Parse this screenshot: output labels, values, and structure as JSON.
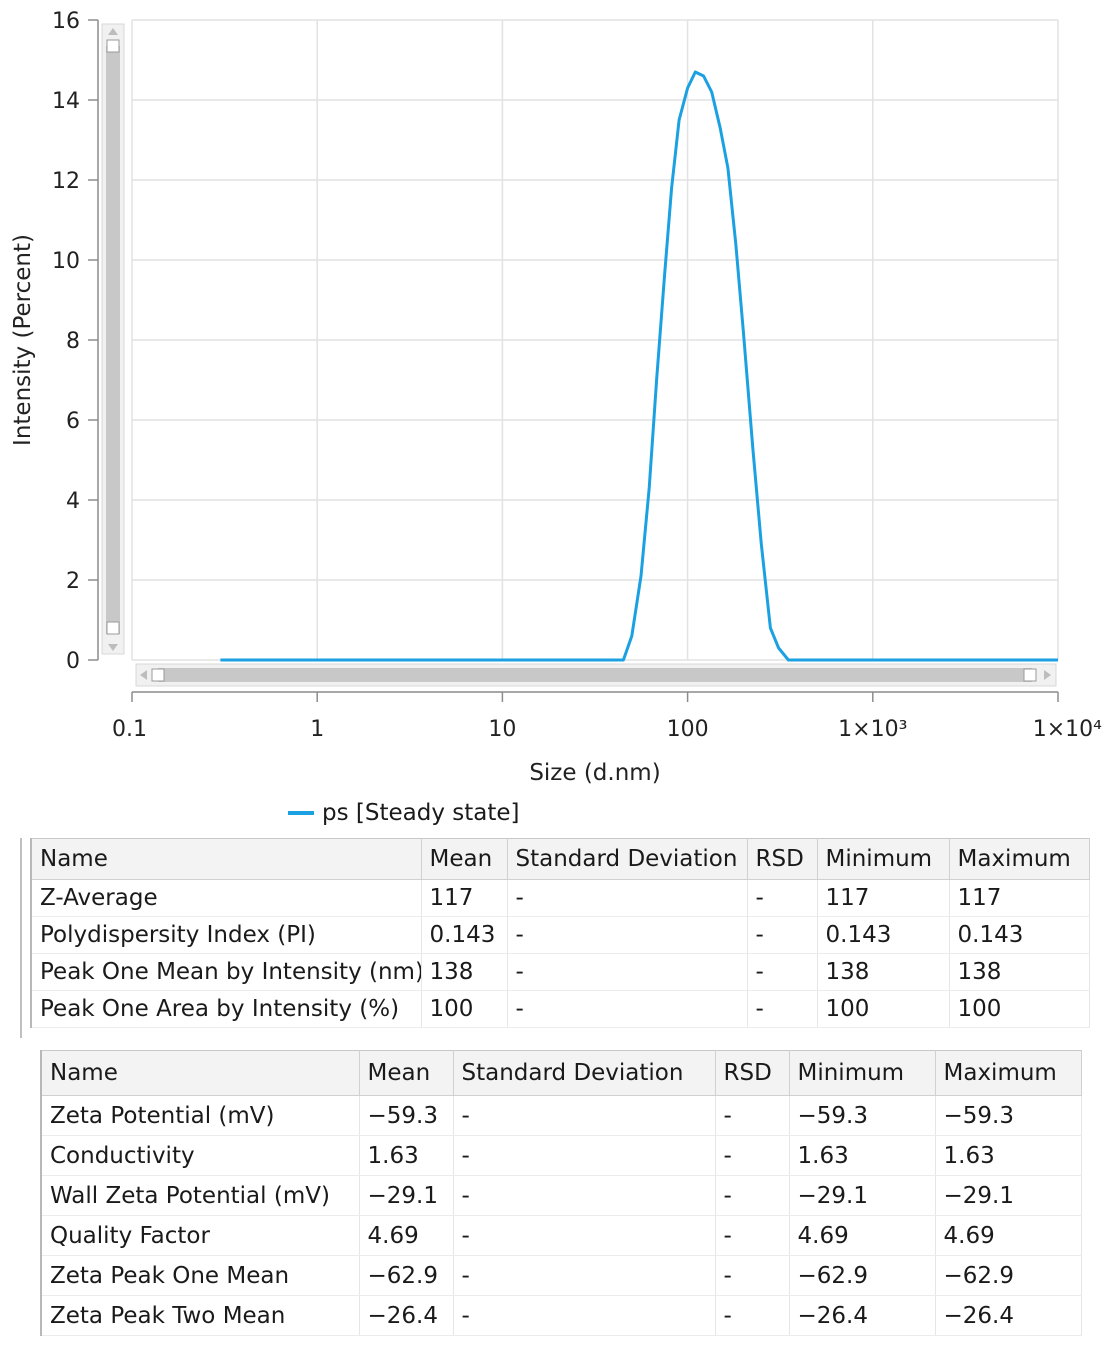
{
  "chart_data": {
    "type": "line",
    "xscale": "log",
    "xlabel": "Size (d.nm)",
    "ylabel": "Intensity (Percent)",
    "xlim": [
      0.1,
      10000
    ],
    "ylim": [
      0,
      16
    ],
    "x_ticks": [
      {
        "value": 0.1,
        "label": "0.1"
      },
      {
        "value": 1,
        "label": "1"
      },
      {
        "value": 10,
        "label": "10"
      },
      {
        "value": 100,
        "label": "100"
      },
      {
        "value": 1000,
        "label": "1×10³"
      },
      {
        "value": 10000,
        "label": "1×10⁴"
      }
    ],
    "y_ticks": [
      0,
      2,
      4,
      6,
      8,
      10,
      12,
      14,
      16
    ],
    "grid": true,
    "legend_position": "bottom-left",
    "series": [
      {
        "name": "ps [Steady state]",
        "color": "#1ba1e2",
        "x": [
          0.3,
          1,
          10,
          45,
          50,
          56,
          62,
          68,
          75,
          82,
          90,
          100,
          110,
          122,
          135,
          150,
          165,
          182,
          200,
          225,
          250,
          280,
          310,
          350,
          10000
        ],
        "y": [
          0,
          0,
          0,
          0,
          0.6,
          2.1,
          4.3,
          7.0,
          9.6,
          11.8,
          13.5,
          14.3,
          14.7,
          14.6,
          14.2,
          13.3,
          12.3,
          10.4,
          8.2,
          5.3,
          2.9,
          0.8,
          0.3,
          0,
          0
        ]
      }
    ]
  },
  "table1": {
    "headers": [
      "Name",
      "Mean",
      "Standard Deviation",
      "RSD",
      "Minimum",
      "Maximum"
    ],
    "rows": [
      [
        "Z-Average",
        "117",
        "-",
        "-",
        "117",
        "117"
      ],
      [
        "Polydispersity Index (PI)",
        "0.143",
        "-",
        "-",
        "0.143",
        "0.143"
      ],
      [
        "Peak One Mean by Intensity (nm)",
        "138",
        "-",
        "-",
        "138",
        "138"
      ],
      [
        "Peak One Area by Intensity (%)",
        "100",
        "-",
        "-",
        "100",
        "100"
      ]
    ]
  },
  "table2": {
    "headers": [
      "Name",
      "Mean",
      "Standard Deviation",
      "RSD",
      "Minimum",
      "Maximum"
    ],
    "rows": [
      [
        "Zeta Potential (mV)",
        "−59.3",
        "-",
        "-",
        "−59.3",
        "−59.3"
      ],
      [
        "Conductivity",
        "1.63",
        "-",
        "-",
        "1.63",
        "1.63"
      ],
      [
        "Wall Zeta Potential (mV)",
        "−29.1",
        "-",
        "-",
        "−29.1",
        "−29.1"
      ],
      [
        "Quality Factor",
        "4.69",
        "-",
        "-",
        "4.69",
        "4.69"
      ],
      [
        "Zeta Peak One Mean",
        "−62.9",
        "-",
        "-",
        "−62.9",
        "−62.9"
      ],
      [
        "Zeta Peak Two Mean",
        "−26.4",
        "-",
        "-",
        "−26.4",
        "−26.4"
      ]
    ]
  }
}
